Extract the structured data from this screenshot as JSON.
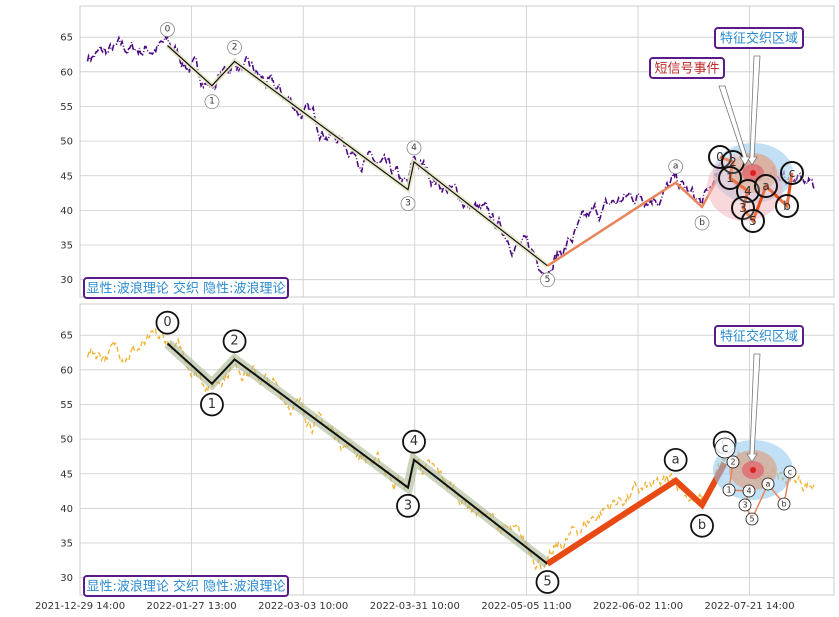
{
  "chart_data": {
    "type": "line",
    "x_tick_labels": [
      "2021-12-29 14:00",
      "2022-01-27 13:00",
      "2022-03-03 10:00",
      "2022-03-31 10:00",
      "2022-05-05 11:00",
      "2022-06-02 11:00",
      "2022-07-21 14:00"
    ],
    "y_ticks": [
      30,
      35,
      40,
      45,
      50,
      55,
      60,
      65
    ],
    "ylim": [
      27.5,
      69.5
    ],
    "grid": true,
    "wave_points": [
      {
        "label": "0",
        "x": 0.116,
        "y": 63.8
      },
      {
        "label": "1",
        "x": 0.175,
        "y": 58.0
      },
      {
        "label": "2",
        "x": 0.205,
        "y": 61.5
      },
      {
        "label": "3",
        "x": 0.435,
        "y": 43.0
      },
      {
        "label": "4",
        "x": 0.443,
        "y": 47.0
      },
      {
        "label": "5",
        "x": 0.62,
        "y": 32.0
      },
      {
        "label": "a",
        "x": 0.79,
        "y": 44.0
      },
      {
        "label": "b",
        "x": 0.825,
        "y": 40.5
      },
      {
        "label": "c",
        "x": 0.855,
        "y": 46.5
      }
    ],
    "cluster_labels_top": [
      "0",
      "2",
      "1",
      "4",
      "3",
      "5",
      "a",
      "b",
      "c"
    ],
    "cluster_labels_bottom": [
      "c",
      "2",
      "1",
      "4",
      "3",
      "5",
      "a",
      "b",
      "c"
    ],
    "panels": [
      {
        "name": "top",
        "price_color": "#4b0a82",
        "badge": "显性:波浪理论 交织 隐性:波浪理论",
        "annotations": [
          "特征交织区域",
          "短信号事件"
        ]
      },
      {
        "name": "bottom",
        "price_color": "#f0b030",
        "badge": "显性:波浪理论 交织 隐性:波浪理论",
        "annotations": [
          "特征交织区域"
        ]
      }
    ],
    "colors": {
      "impulse_line": "#111111",
      "correction_line_top": "#e8845a",
      "correction_line_bottom": "#e84a14",
      "box_border": "#5a1a8a",
      "box_text_blue": "#2a8ad0",
      "box_text_red": "#c0282a"
    }
  }
}
